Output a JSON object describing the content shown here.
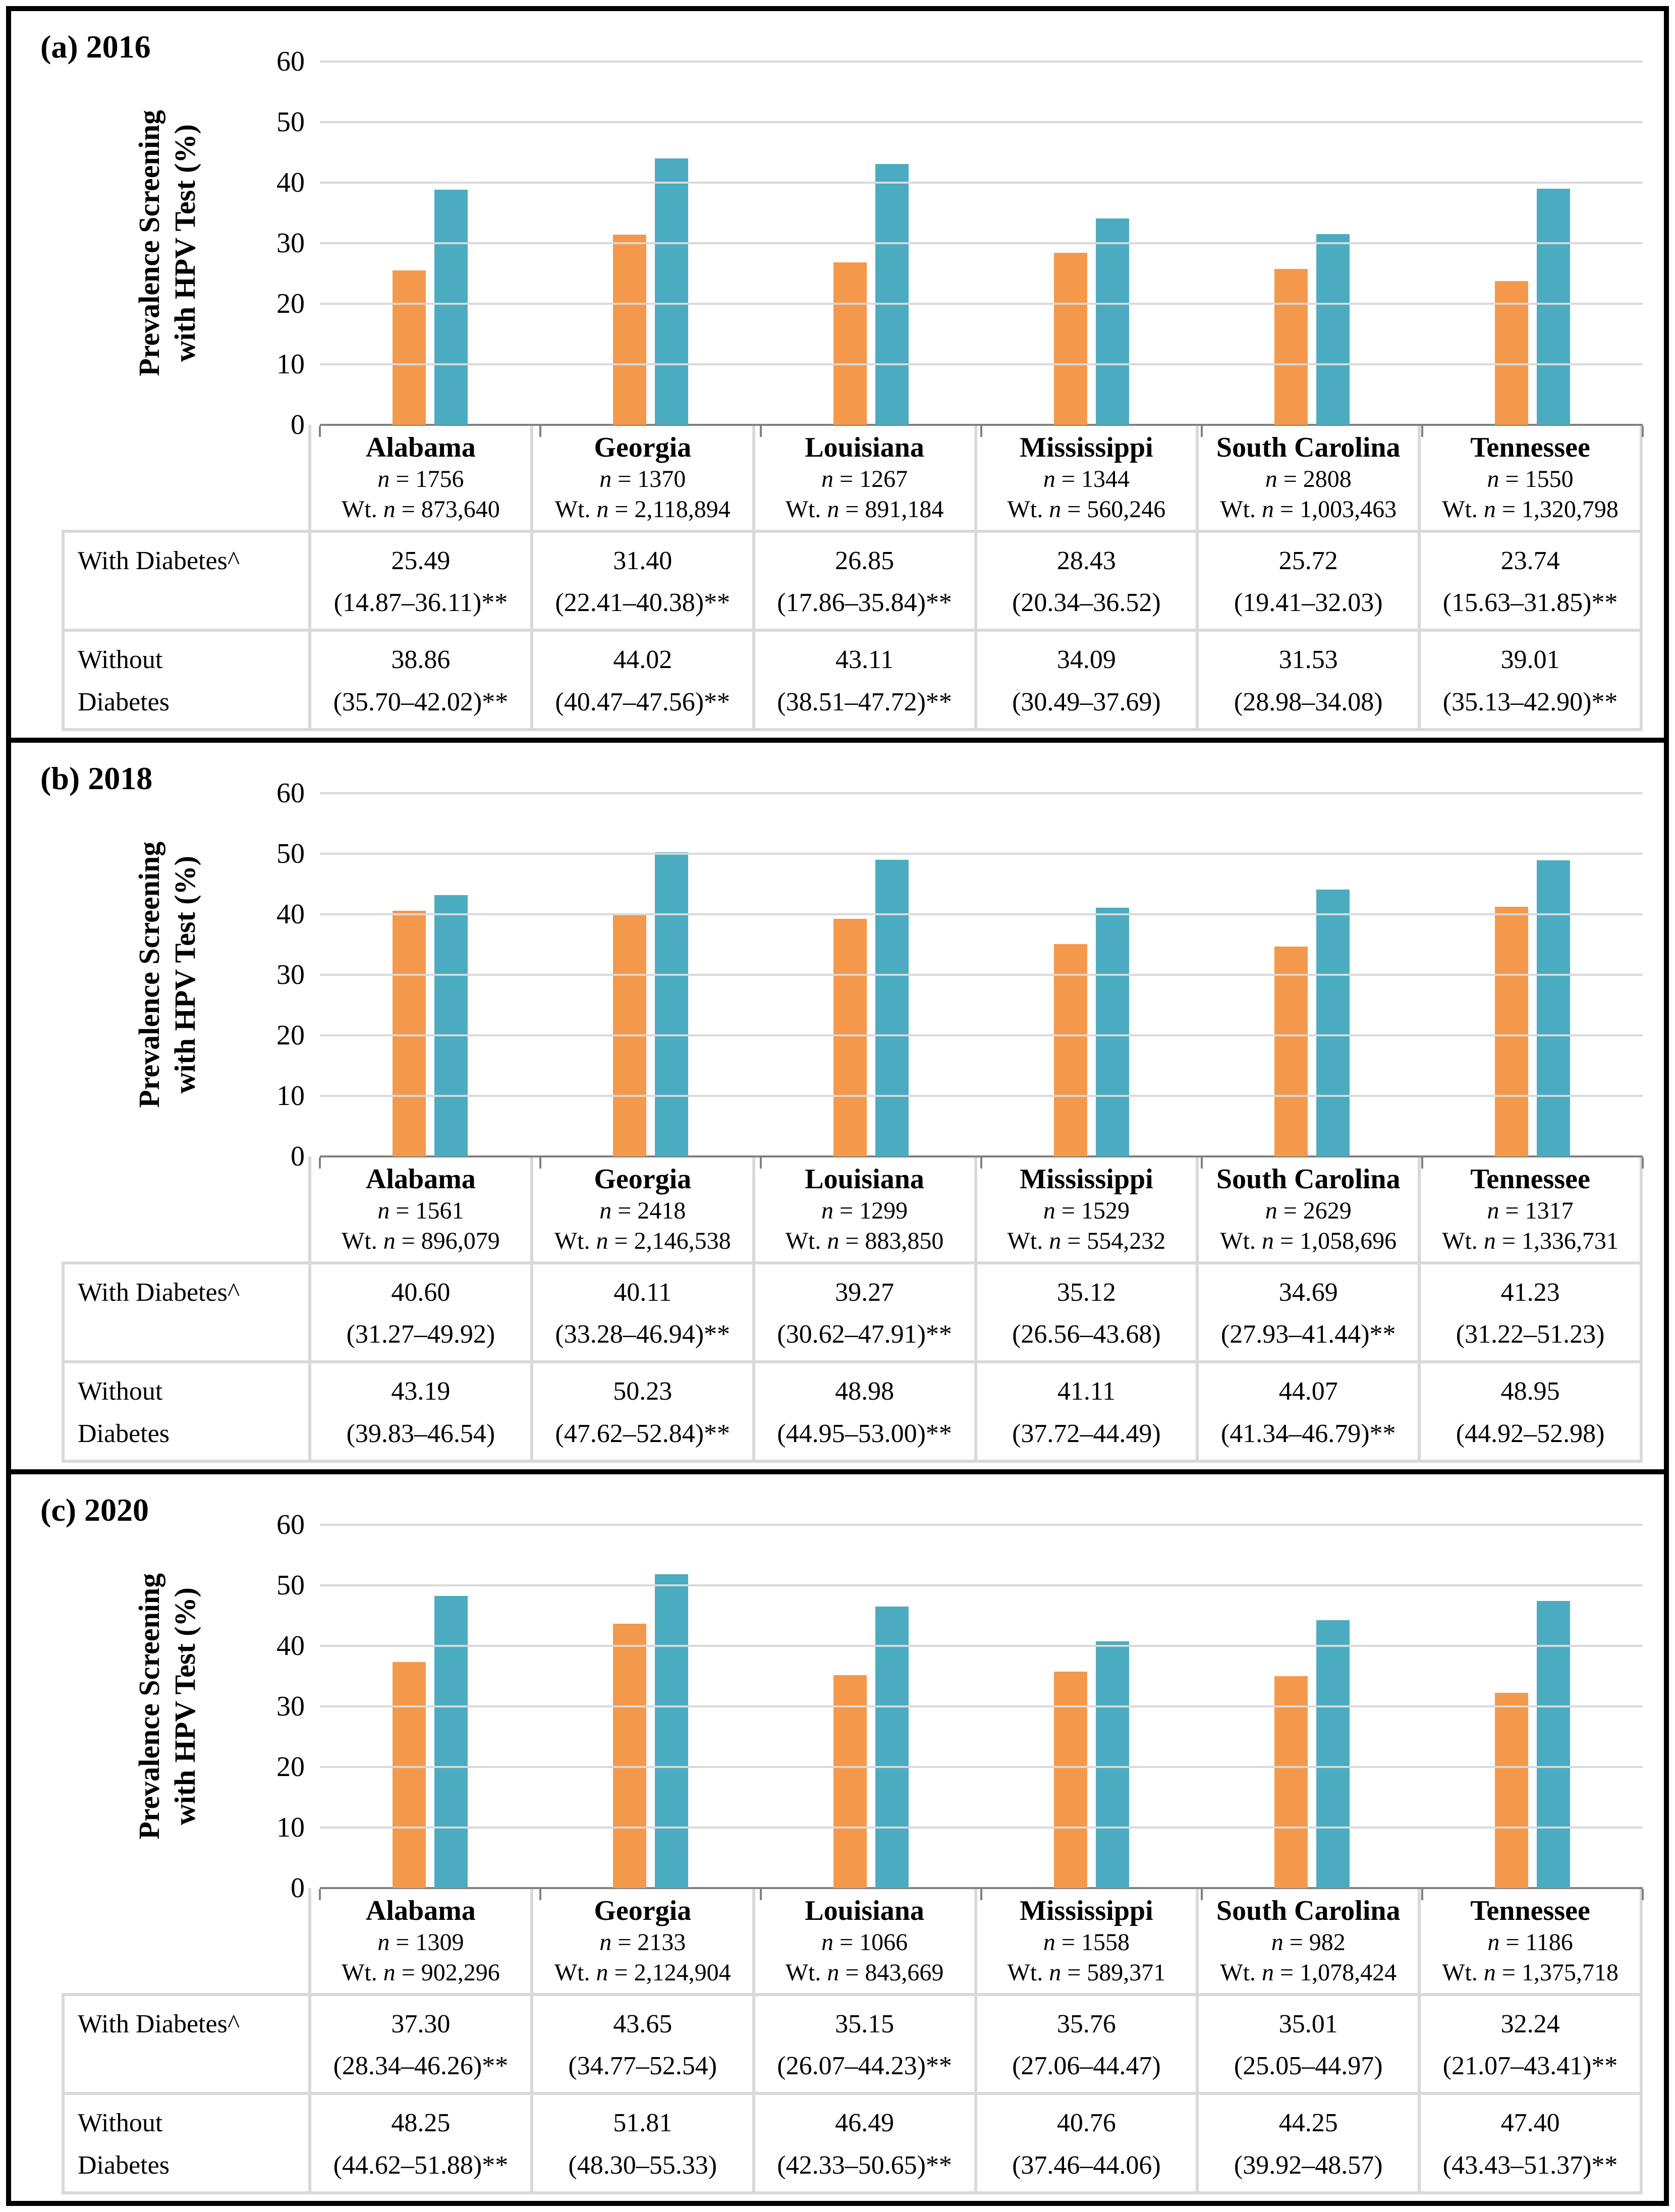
{
  "figure": {
    "y_axis_title_line1": "Prevalence Screening",
    "y_axis_title_line2": "with HPV Test (%)",
    "y_ticks": [
      "0",
      "10",
      "20",
      "30",
      "40",
      "50",
      "60"
    ],
    "y_max": 60,
    "n_symbol": "n",
    "wt_prefix": "Wt. ",
    "row_label_with": "With Diabetes^",
    "row_label_without": "Without\nDiabetes",
    "legend": [
      {
        "label": "With Diabetes",
        "color": "#F4994B"
      },
      {
        "label": "Without Diabetes",
        "color": "#4BACC1"
      }
    ],
    "colors": {
      "grid": "#D9D9D9",
      "axis": "#808080",
      "table_border": "#D9D9D9",
      "with_diabetes": "#F4994B",
      "without_diabetes": "#4BACC1"
    }
  },
  "chart_data": [
    {
      "type": "bar",
      "panel_label": "(a) 2016",
      "title": "(a) 2016",
      "xlabel": "",
      "ylabel": "Prevalence Screening with HPV Test (%)",
      "ylim": [
        0,
        60
      ],
      "grid": true,
      "legend_position": "bottom",
      "categories": [
        "Alabama",
        "Georgia",
        "Louisiana",
        "Mississippi",
        "South Carolina",
        "Tennessee"
      ],
      "series": [
        {
          "name": "With Diabetes",
          "values": [
            25.49,
            31.4,
            26.85,
            28.43,
            25.72,
            23.74
          ]
        },
        {
          "name": "Without Diabetes",
          "values": [
            38.86,
            44.02,
            43.11,
            34.09,
            31.53,
            39.01
          ]
        }
      ],
      "states": [
        {
          "name": "Alabama",
          "n_eq": " = 1756",
          "wt_eq": " = 873,640",
          "with_text": "25.49",
          "with_ci": "(14.87–36.11)**",
          "without_text": "38.86",
          "without_ci": "(35.70–42.02)**"
        },
        {
          "name": "Georgia",
          "n_eq": " = 1370",
          "wt_eq": " = 2,118,894",
          "with_text": "31.40",
          "with_ci": "(22.41–40.38)**",
          "without_text": "44.02",
          "without_ci": "(40.47–47.56)**"
        },
        {
          "name": "Louisiana",
          "n_eq": " = 1267",
          "wt_eq": " = 891,184",
          "with_text": "26.85",
          "with_ci": "(17.86–35.84)**",
          "without_text": "43.11",
          "without_ci": "(38.51–47.72)**"
        },
        {
          "name": "Mississippi",
          "n_eq": " = 1344",
          "wt_eq": " = 560,246",
          "with_text": "28.43",
          "with_ci": "(20.34–36.52)",
          "without_text": "34.09",
          "without_ci": "(30.49–37.69)"
        },
        {
          "name": "South Carolina",
          "n_eq": " = 2808",
          "wt_eq": " = 1,003,463",
          "with_text": "25.72",
          "with_ci": "(19.41–32.03)",
          "without_text": "31.53",
          "without_ci": "(28.98–34.08)"
        },
        {
          "name": "Tennessee",
          "n_eq": " = 1550",
          "wt_eq": " = 1,320,798",
          "with_text": "23.74",
          "with_ci": "(15.63–31.85)**",
          "without_text": "39.01",
          "without_ci": "(35.13–42.90)**"
        }
      ]
    },
    {
      "type": "bar",
      "panel_label": "(b) 2018",
      "title": "(b) 2018",
      "xlabel": "",
      "ylabel": "Prevalence Screening with HPV Test (%)",
      "ylim": [
        0,
        60
      ],
      "grid": true,
      "legend_position": "bottom",
      "categories": [
        "Alabama",
        "Georgia",
        "Louisiana",
        "Mississippi",
        "South Carolina",
        "Tennessee"
      ],
      "series": [
        {
          "name": "With Diabetes",
          "values": [
            40.6,
            40.11,
            39.27,
            35.12,
            34.69,
            41.23
          ]
        },
        {
          "name": "Without Diabetes",
          "values": [
            43.19,
            50.23,
            48.98,
            41.11,
            44.07,
            48.95
          ]
        }
      ],
      "states": [
        {
          "name": "Alabama",
          "n_eq": " = 1561",
          "wt_eq": " = 896,079",
          "with_text": "40.60",
          "with_ci": "(31.27–49.92)",
          "without_text": "43.19",
          "without_ci": "(39.83–46.54)"
        },
        {
          "name": "Georgia",
          "n_eq": " = 2418",
          "wt_eq": " = 2,146,538",
          "with_text": "40.11",
          "with_ci": "(33.28–46.94)**",
          "without_text": "50.23",
          "without_ci": "(47.62–52.84)**"
        },
        {
          "name": "Louisiana",
          "n_eq": " = 1299",
          "wt_eq": " = 883,850",
          "with_text": "39.27",
          "with_ci": "(30.62–47.91)**",
          "without_text": "48.98",
          "without_ci": "(44.95–53.00)**"
        },
        {
          "name": "Mississippi",
          "n_eq": " = 1529",
          "wt_eq": " = 554,232",
          "with_text": "35.12",
          "with_ci": "(26.56–43.68)",
          "without_text": "41.11",
          "without_ci": "(37.72–44.49)"
        },
        {
          "name": "South Carolina",
          "n_eq": " = 2629",
          "wt_eq": " = 1,058,696",
          "with_text": "34.69",
          "with_ci": "(27.93–41.44)**",
          "without_text": "44.07",
          "without_ci": "(41.34–46.79)**"
        },
        {
          "name": "Tennessee",
          "n_eq": " = 1317",
          "wt_eq": " = 1,336,731",
          "with_text": "41.23",
          "with_ci": "(31.22–51.23)",
          "without_text": "48.95",
          "without_ci": "(44.92–52.98)"
        }
      ]
    },
    {
      "type": "bar",
      "panel_label": "(c) 2020",
      "title": "(c) 2020",
      "xlabel": "",
      "ylabel": "Prevalence Screening with HPV Test (%)",
      "ylim": [
        0,
        60
      ],
      "grid": true,
      "legend_position": "bottom",
      "categories": [
        "Alabama",
        "Georgia",
        "Louisiana",
        "Mississippi",
        "South Carolina",
        "Tennessee"
      ],
      "series": [
        {
          "name": "With Diabetes",
          "values": [
            37.3,
            43.65,
            35.15,
            35.76,
            35.01,
            32.24
          ]
        },
        {
          "name": "Without Diabetes",
          "values": [
            48.25,
            51.81,
            46.49,
            40.76,
            44.25,
            47.4
          ]
        }
      ],
      "states": [
        {
          "name": "Alabama",
          "n_eq": " = 1309",
          "wt_eq": " = 902,296",
          "with_text": "37.30",
          "with_ci": "(28.34–46.26)**",
          "without_text": "48.25",
          "without_ci": "(44.62–51.88)**"
        },
        {
          "name": "Georgia",
          "n_eq": " = 2133",
          "wt_eq": " = 2,124,904",
          "with_text": "43.65",
          "with_ci": "(34.77–52.54)",
          "without_text": "51.81",
          "without_ci": "(48.30–55.33)"
        },
        {
          "name": "Louisiana",
          "n_eq": " = 1066",
          "wt_eq": " = 843,669",
          "with_text": "35.15",
          "with_ci": "(26.07–44.23)**",
          "without_text": "46.49",
          "without_ci": "(42.33–50.65)**"
        },
        {
          "name": "Mississippi",
          "n_eq": " = 1558",
          "wt_eq": " = 589,371",
          "with_text": "35.76",
          "with_ci": "(27.06–44.47)",
          "without_text": "40.76",
          "without_ci": "(37.46–44.06)"
        },
        {
          "name": "South Carolina",
          "n_eq": " = 982",
          "wt_eq": " = 1,078,424",
          "with_text": "35.01",
          "with_ci": "(25.05–44.97)",
          "without_text": "44.25",
          "without_ci": "(39.92–48.57)"
        },
        {
          "name": "Tennessee",
          "n_eq": " = 1186",
          "wt_eq": " = 1,375,718",
          "with_text": "32.24",
          "with_ci": "(21.07–43.41)**",
          "without_text": "47.40",
          "without_ci": "(43.43–51.37)**"
        }
      ]
    }
  ]
}
